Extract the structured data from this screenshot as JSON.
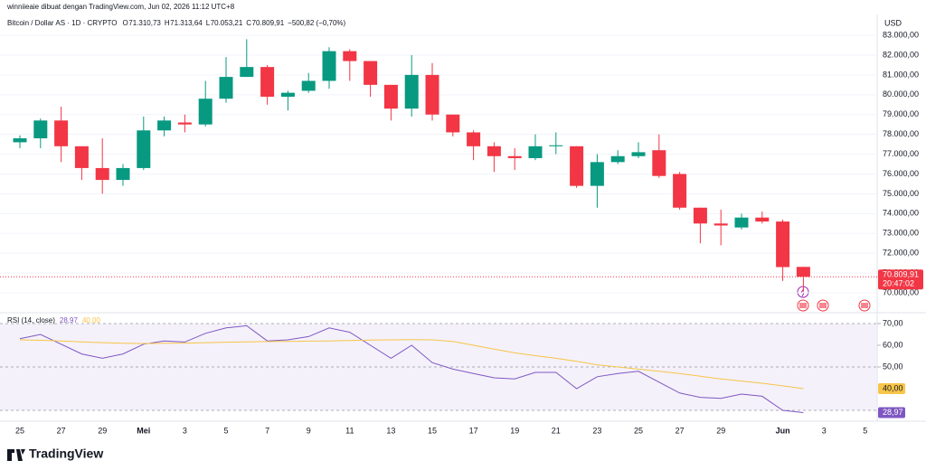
{
  "header": {
    "attribution": "winniieaie dibuat dengan TradingView.com, Jun 02, 2026 11:12 UTC+8",
    "brand": "TradingView"
  },
  "chart_data": [
    {
      "type": "candlestick",
      "title": "Bitcoin / Dollar AS · 1D · CRYPTO",
      "ohlc_labels": [
        "O",
        "H",
        "L",
        "C"
      ],
      "ohlc_values": [
        "71.310,73",
        "71.313,64",
        "70.053,21",
        "70.809,91"
      ],
      "change": "−500,82 (−0,70%)",
      "currency": "USD",
      "categories": [
        "25",
        null,
        "27",
        null,
        "29",
        null,
        "Mei",
        null,
        "3",
        null,
        "5",
        null,
        "7",
        null,
        "9",
        null,
        "11",
        null,
        "13",
        null,
        "15",
        null,
        "17",
        null,
        "19",
        null,
        "21",
        null,
        "23",
        null,
        "25",
        null,
        "27",
        null,
        "29",
        null,
        null,
        "Jun",
        null,
        "3",
        null,
        "5"
      ],
      "open": [
        77600,
        77800,
        78700,
        77400,
        76300,
        75700,
        76300,
        78200,
        78600,
        78500,
        79800,
        80900,
        81400,
        79900,
        80200,
        80700,
        82200,
        81700,
        80500,
        79300,
        81000,
        79000,
        78100,
        77400,
        76900,
        76800,
        77400,
        77400,
        75400,
        76600,
        76900,
        77200,
        76000,
        74300,
        73500,
        73300,
        73800,
        73600,
        71310.73,
        null,
        null,
        null
      ],
      "high": [
        77950,
        78800,
        79400,
        77400,
        77800,
        76500,
        78900,
        78900,
        79000,
        80700,
        81900,
        82800,
        81500,
        80200,
        81100,
        82400,
        82300,
        81700,
        80500,
        82000,
        81600,
        79000,
        78200,
        77600,
        77300,
        78000,
        78100,
        77400,
        77000,
        77200,
        77600,
        78000,
        76100,
        74300,
        74200,
        74000,
        74100,
        73700,
        71313.64,
        null,
        null,
        null
      ],
      "low": [
        77300,
        77300,
        76600,
        75700,
        75000,
        75400,
        76200,
        77900,
        78100,
        78400,
        79600,
        80900,
        79500,
        79200,
        80100,
        80300,
        80700,
        79900,
        78700,
        78900,
        78700,
        77900,
        76700,
        76100,
        76200,
        76700,
        77000,
        75300,
        74300,
        76500,
        76800,
        75800,
        74200,
        72500,
        72400,
        73200,
        73500,
        70600,
        70053.21,
        null,
        null,
        null
      ],
      "close": [
        77800,
        78700,
        77400,
        76300,
        75700,
        76300,
        78200,
        78700,
        78500,
        79800,
        80900,
        81400,
        79900,
        80100,
        80700,
        82200,
        81700,
        80500,
        79300,
        81000,
        79000,
        78100,
        77400,
        76900,
        76800,
        77400,
        77450,
        75400,
        76600,
        76900,
        77100,
        75900,
        74300,
        73500,
        73400,
        73800,
        73600,
        71300,
        70809.91,
        null,
        null,
        null
      ],
      "up_color": "#089981",
      "down_color": "#f23645",
      "ylim": [
        69270,
        83870
      ],
      "yticks": [
        {
          "value": 70000,
          "label": "70.000,00"
        },
        {
          "value": 71000,
          "label": "71.000,00"
        },
        {
          "value": 72000,
          "label": "72.000,00"
        },
        {
          "value": 73000,
          "label": "73.000,00"
        },
        {
          "value": 74000,
          "label": "74.000,00"
        },
        {
          "value": 75000,
          "label": "75.000,00"
        },
        {
          "value": 76000,
          "label": "76.000,00"
        },
        {
          "value": 77000,
          "label": "77.000,00"
        },
        {
          "value": 78000,
          "label": "78.000,00"
        },
        {
          "value": 79000,
          "label": "79.000,00"
        },
        {
          "value": 80000,
          "label": "80.000,00"
        },
        {
          "value": 81000,
          "label": "81.000,00"
        },
        {
          "value": 82000,
          "label": "82.000,00"
        },
        {
          "value": 83000,
          "label": "83.000,00"
        }
      ],
      "last_price_label": "70.809,91",
      "countdown": "20:47:02",
      "grid": true
    },
    {
      "type": "line",
      "title": "RSI (14, close)",
      "series": [
        {
          "color": "#7e57c2",
          "last_label": "28,97",
          "values": [
            63,
            65,
            60.5,
            56,
            54,
            56,
            60.5,
            62,
            61.5,
            65.5,
            68,
            69,
            62,
            62.5,
            64,
            68,
            66,
            60,
            54,
            60,
            52,
            49,
            47,
            45,
            44.5,
            47.5,
            47.5,
            40,
            45.5,
            47,
            48,
            43,
            38,
            36,
            35.5,
            37.5,
            36.5,
            30,
            28.97,
            null,
            null,
            null
          ]
        },
        {
          "color": "#f7c548",
          "last_label": "40,00",
          "values": [
            62.5,
            62.3,
            62,
            61.6,
            61.2,
            60.9,
            60.8,
            60.9,
            61,
            61.2,
            61.4,
            61.6,
            61.7,
            61.8,
            61.9,
            62,
            62.2,
            62.4,
            62.5,
            62.6,
            62.5,
            61.8,
            60,
            58.2,
            56.5,
            55.2,
            54,
            52.6,
            51,
            50,
            49,
            48,
            47,
            45.7,
            44.5,
            43.5,
            42.5,
            41.3,
            40,
            null,
            null,
            null
          ]
        }
      ],
      "band": [
        30,
        70
      ],
      "band_color": "#ede7f6",
      "levels": [
        70,
        50,
        30
      ],
      "ylim": [
        26.67,
        73.33
      ],
      "yticks": [
        {
          "value": 70,
          "label": "70,00"
        },
        {
          "value": 60,
          "label": "60,00"
        },
        {
          "value": 50,
          "label": "50,00"
        }
      ]
    }
  ]
}
